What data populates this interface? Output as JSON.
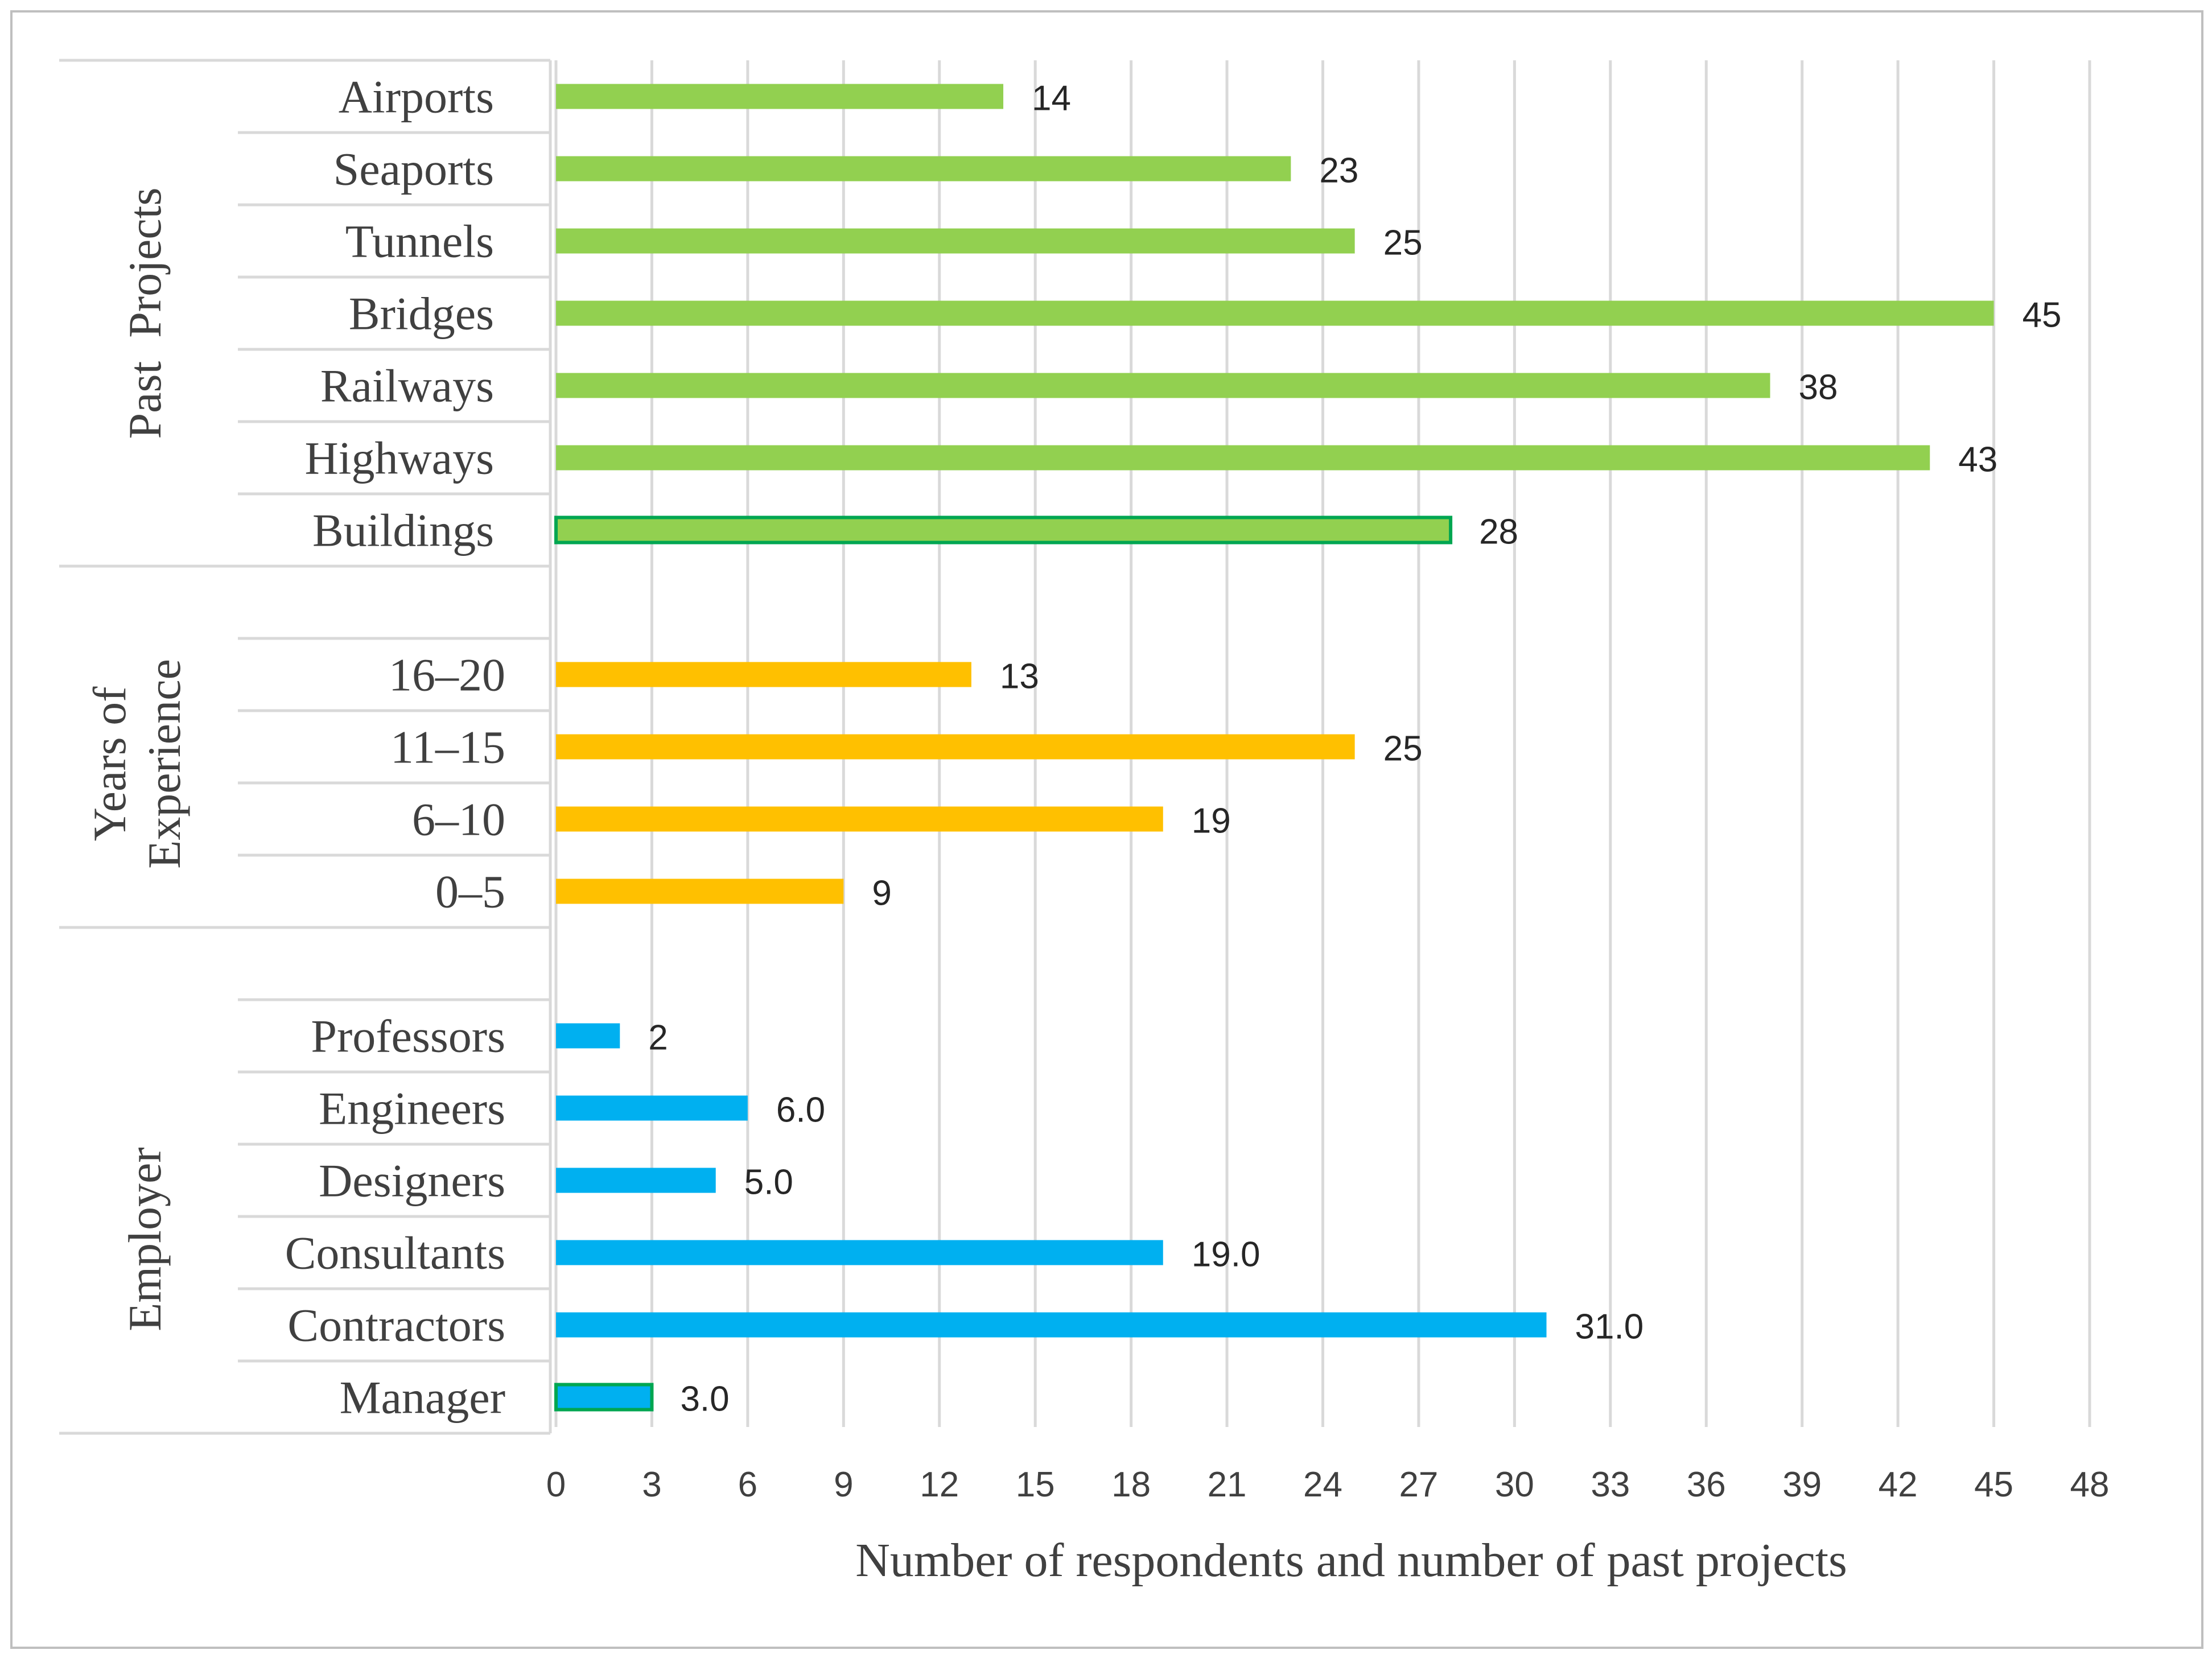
{
  "chart_data": {
    "type": "bar",
    "orientation": "horizontal",
    "xlabel": "Number of respondents and  number of past projects",
    "xlim": [
      0,
      48
    ],
    "xticks": [
      "0",
      "3",
      "6",
      "9",
      "12",
      "15",
      "18",
      "21",
      "24",
      "27",
      "30",
      "33",
      "36",
      "39",
      "42",
      "45",
      "48"
    ],
    "grid": true,
    "groups": [
      {
        "name": "Past  Projects",
        "color": "#92d050",
        "items": [
          {
            "label": "Airports",
            "value": 14,
            "display": "14"
          },
          {
            "label": "Seaports",
            "value": 23,
            "display": "23"
          },
          {
            "label": "Tunnels",
            "value": 25,
            "display": "25"
          },
          {
            "label": "Bridges",
            "value": 45,
            "display": "45"
          },
          {
            "label": "Railways",
            "value": 38,
            "display": "38"
          },
          {
            "label": "Highways",
            "value": 43,
            "display": "43"
          },
          {
            "label": "Buildings",
            "value": 28,
            "display": "28",
            "outlined": true
          }
        ]
      },
      {
        "name": "Years of Experience",
        "name_lines": [
          "Years of",
          "Experience"
        ],
        "color": "#ffc000",
        "items": [
          {
            "label": "16–20",
            "value": 13,
            "display": "13"
          },
          {
            "label": "11–15",
            "value": 25,
            "display": "25"
          },
          {
            "label": "6–10",
            "value": 19,
            "display": "19"
          },
          {
            "label": "0–5",
            "value": 9,
            "display": "9"
          }
        ]
      },
      {
        "name": "Employer",
        "color": "#00b0f0",
        "items": [
          {
            "label": "Professors",
            "value": 2,
            "display": "2"
          },
          {
            "label": "Engineers",
            "value": 6,
            "display": "6.0"
          },
          {
            "label": "Designers",
            "value": 5,
            "display": "5.0"
          },
          {
            "label": "Consultants",
            "value": 19,
            "display": "19.0"
          },
          {
            "label": "Contractors",
            "value": 31,
            "display": "31.0"
          },
          {
            "label": "Manager",
            "value": 3,
            "display": "3.0",
            "outlined": true
          }
        ]
      }
    ],
    "outline_color": "#00a651"
  }
}
